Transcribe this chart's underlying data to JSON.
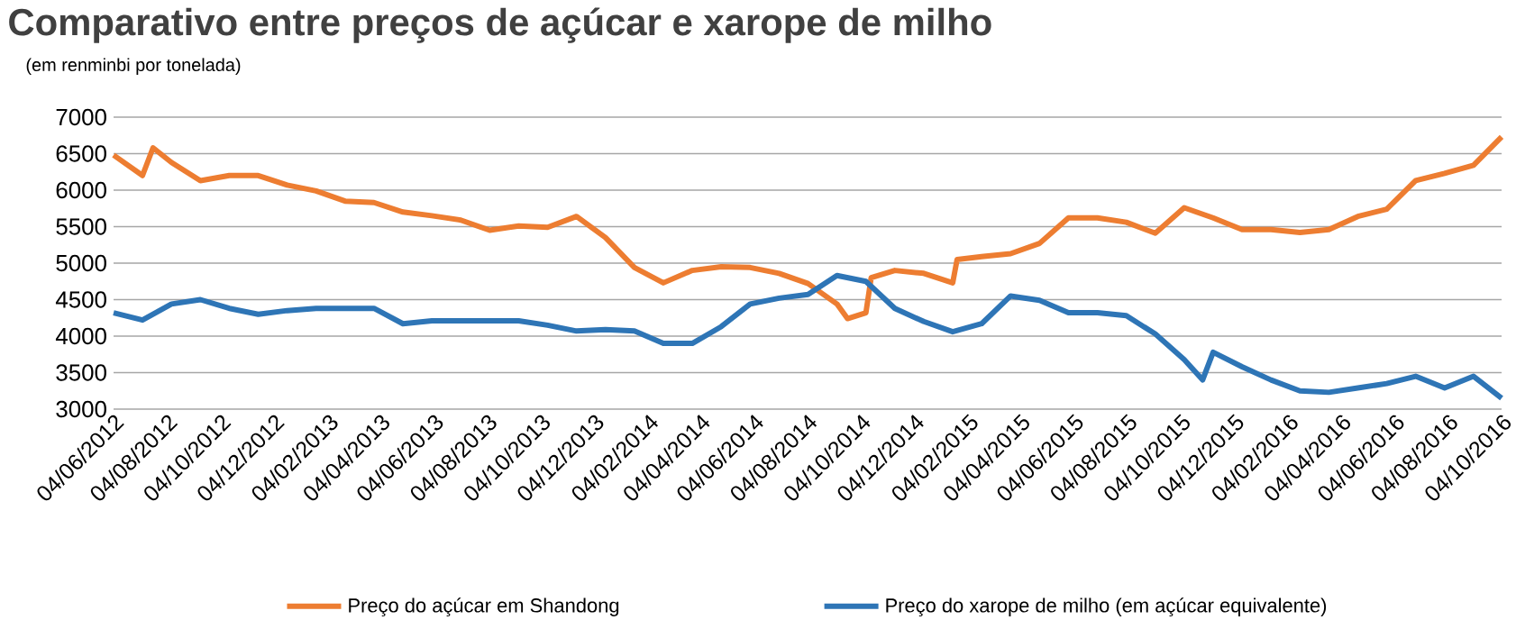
{
  "chart_data": {
    "type": "line",
    "title": "Comparativo entre preços de açúcar e xarope de milho",
    "subtitle": "(em renminbi por tonelada)",
    "grid": "y",
    "legend": "bottom",
    "line_style": "solid",
    "xlim": [
      "2012-06-04",
      "2016-10-04"
    ],
    "xticks": [
      {
        "value": "2012-06-04",
        "label": "04/06/2012"
      },
      {
        "value": "2012-08-04",
        "label": "04/08/2012"
      },
      {
        "value": "2012-10-04",
        "label": "04/10/2012"
      },
      {
        "value": "2012-12-04",
        "label": "04/12/2012"
      },
      {
        "value": "2013-02-04",
        "label": "04/02/2013"
      },
      {
        "value": "2013-04-04",
        "label": "04/04/2013"
      },
      {
        "value": "2013-06-04",
        "label": "04/06/2013"
      },
      {
        "value": "2013-08-04",
        "label": "04/08/2013"
      },
      {
        "value": "2013-10-04",
        "label": "04/10/2013"
      },
      {
        "value": "2013-12-04",
        "label": "04/12/2013"
      },
      {
        "value": "2014-02-04",
        "label": "04/02/2014"
      },
      {
        "value": "2014-04-04",
        "label": "04/04/2014"
      },
      {
        "value": "2014-06-04",
        "label": "04/06/2014"
      },
      {
        "value": "2014-08-04",
        "label": "04/08/2014"
      },
      {
        "value": "2014-10-04",
        "label": "04/10/2014"
      },
      {
        "value": "2014-12-04",
        "label": "04/12/2014"
      },
      {
        "value": "2015-02-04",
        "label": "04/02/2015"
      },
      {
        "value": "2015-04-04",
        "label": "04/04/2015"
      },
      {
        "value": "2015-06-04",
        "label": "04/06/2015"
      },
      {
        "value": "2015-08-04",
        "label": "04/08/2015"
      },
      {
        "value": "2015-10-04",
        "label": "04/10/2015"
      },
      {
        "value": "2015-12-04",
        "label": "04/12/2015"
      },
      {
        "value": "2016-02-04",
        "label": "04/02/2016"
      },
      {
        "value": "2016-04-04",
        "label": "04/04/2016"
      },
      {
        "value": "2016-06-04",
        "label": "04/06/2016"
      },
      {
        "value": "2016-08-04",
        "label": "04/08/2016"
      },
      {
        "value": "2016-10-04",
        "label": "04/10/2016"
      }
    ],
    "ylim": [
      3000,
      7000
    ],
    "yticks": [
      3000,
      3500,
      4000,
      4500,
      5000,
      5500,
      6000,
      6500,
      7000
    ],
    "series": [
      {
        "name": "Preço do açúcar em Shandong",
        "color": "#ed7d31",
        "x": [
          "2012-06-04",
          "2012-07-07",
          "2012-07-19",
          "2012-08-09",
          "2012-09-11",
          "2012-10-14",
          "2012-11-16",
          "2012-12-19",
          "2013-01-21",
          "2013-02-23",
          "2013-03-28",
          "2013-04-30",
          "2013-06-02",
          "2013-07-05",
          "2013-08-07",
          "2013-09-09",
          "2013-10-12",
          "2013-11-14",
          "2013-12-17",
          "2014-01-19",
          "2014-02-21",
          "2014-03-26",
          "2014-04-28",
          "2014-05-31",
          "2014-07-03",
          "2014-08-05",
          "2014-09-07",
          "2014-09-19",
          "2014-10-10",
          "2014-10-16",
          "2014-11-12",
          "2014-12-15",
          "2015-01-17",
          "2015-01-22",
          "2015-02-19",
          "2015-03-24",
          "2015-04-26",
          "2015-05-29",
          "2015-07-01",
          "2015-08-03",
          "2015-09-05",
          "2015-10-08",
          "2015-11-10",
          "2015-12-13",
          "2016-01-15",
          "2016-02-17",
          "2016-03-21",
          "2016-04-23",
          "2016-05-26",
          "2016-06-28",
          "2016-07-31",
          "2016-09-02",
          "2016-10-04"
        ],
        "values": [
          6480,
          6200,
          6580,
          6380,
          6130,
          6200,
          6200,
          6070,
          5990,
          5850,
          5830,
          5700,
          5650,
          5590,
          5450,
          5510,
          5490,
          5640,
          5350,
          4940,
          4730,
          4900,
          4950,
          4940,
          4860,
          4720,
          4440,
          4240,
          4320,
          4800,
          4900,
          4860,
          4730,
          5050,
          5090,
          5130,
          5270,
          5620,
          5620,
          5560,
          5410,
          5760,
          5620,
          5460,
          5460,
          5420,
          5460,
          5640,
          5740,
          6130,
          6230,
          6340,
          6730
        ]
      },
      {
        "name": "Preço do xarope de milho (em açúcar equivalente)",
        "color": "#2e75b6",
        "x": [
          "2012-06-04",
          "2012-07-07",
          "2012-08-09",
          "2012-09-11",
          "2012-10-14",
          "2012-11-16",
          "2012-12-19",
          "2013-01-21",
          "2013-02-23",
          "2013-03-28",
          "2013-04-30",
          "2013-06-02",
          "2013-07-05",
          "2013-08-07",
          "2013-09-09",
          "2013-10-12",
          "2013-11-14",
          "2013-12-17",
          "2014-01-19",
          "2014-02-21",
          "2014-03-26",
          "2014-04-28",
          "2014-05-31",
          "2014-07-03",
          "2014-08-05",
          "2014-09-07",
          "2014-10-10",
          "2014-11-12",
          "2014-12-15",
          "2015-01-17",
          "2015-02-19",
          "2015-03-24",
          "2015-04-26",
          "2015-05-29",
          "2015-07-01",
          "2015-08-03",
          "2015-09-05",
          "2015-10-08",
          "2015-10-29",
          "2015-11-10",
          "2015-12-13",
          "2016-01-15",
          "2016-02-17",
          "2016-03-21",
          "2016-04-23",
          "2016-05-26",
          "2016-06-28",
          "2016-07-31",
          "2016-09-02",
          "2016-10-04"
        ],
        "values": [
          4320,
          4220,
          4440,
          4500,
          4380,
          4300,
          4350,
          4380,
          4380,
          4380,
          4170,
          4210,
          4210,
          4210,
          4210,
          4150,
          4070,
          4090,
          4070,
          3900,
          3900,
          4130,
          4440,
          4520,
          4570,
          4830,
          4750,
          4380,
          4200,
          4060,
          4170,
          4550,
          4490,
          4320,
          4320,
          4280,
          4030,
          3680,
          3400,
          3780,
          3580,
          3400,
          3250,
          3230,
          3290,
          3350,
          3450,
          3290,
          3450,
          3150
        ]
      }
    ]
  }
}
